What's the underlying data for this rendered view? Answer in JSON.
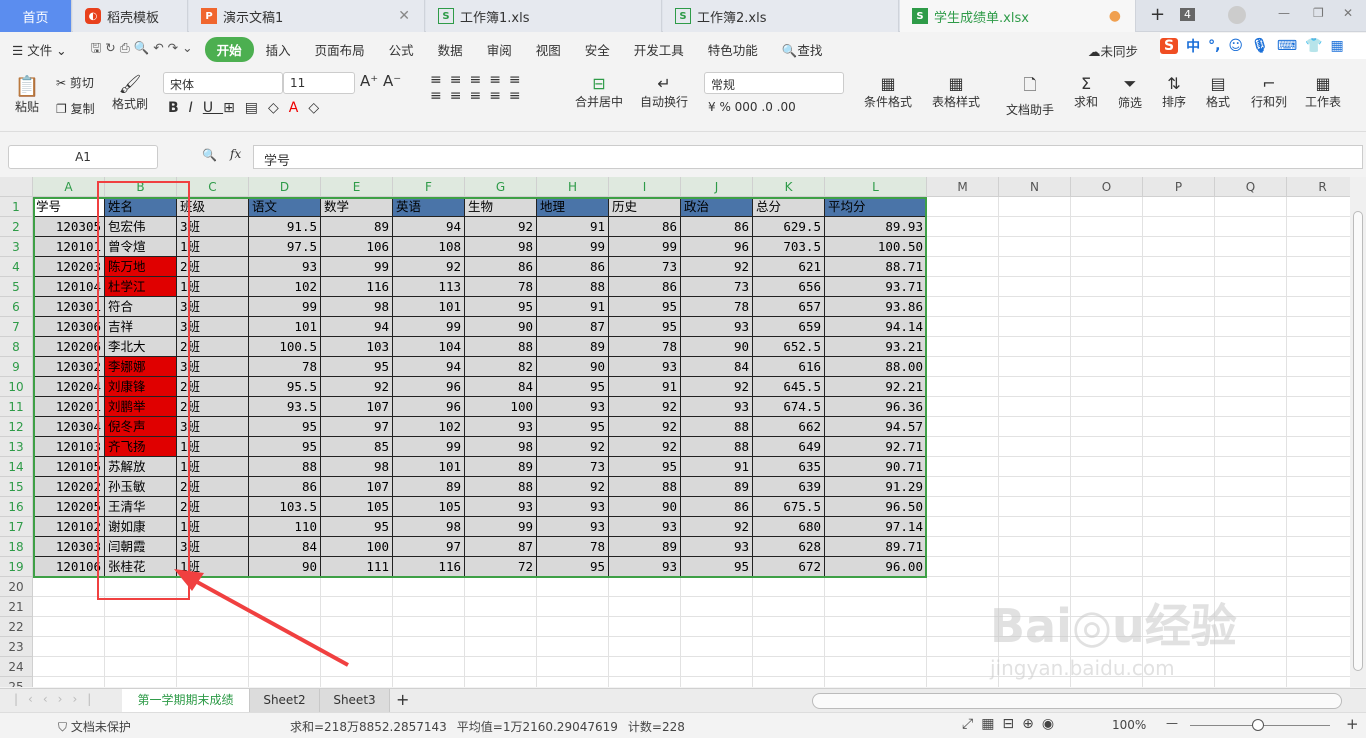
{
  "tabs": [
    {
      "label": "首页"
    },
    {
      "label": "稻壳模板"
    },
    {
      "label": "演示文稿1"
    },
    {
      "label": "工作簿1.xls"
    },
    {
      "label": "工作簿2.xls"
    },
    {
      "label": "学生成绩单.xlsx"
    }
  ],
  "tab_count": "4",
  "menu": {
    "file": "文件",
    "items": [
      "开始",
      "插入",
      "页面布局",
      "公式",
      "数据",
      "审阅",
      "视图",
      "安全",
      "开发工具",
      "特色功能"
    ],
    "search": "查找",
    "sync": "未同步"
  },
  "ime": {
    "lang": "中",
    "punct": "°,"
  },
  "ribbon": {
    "paste": "粘贴",
    "cut": "剪切",
    "copy": "复制",
    "format_painter": "格式刷",
    "font": "宋体",
    "size": "11",
    "merge": "合并居中",
    "wrap": "自动换行",
    "number_format": "常规",
    "cond_format": "条件格式",
    "table_style": "表格样式",
    "doc_helper": "文档助手",
    "sum": "求和",
    "filter": "筛选",
    "sort": "排序",
    "format": "格式",
    "rowcol": "行和列",
    "sheet": "工作表"
  },
  "formula_bar": {
    "cell": "A1",
    "fx": "fx",
    "value": "学号"
  },
  "columns": [
    "A",
    "B",
    "C",
    "D",
    "E",
    "F",
    "G",
    "H",
    "I",
    "J",
    "K",
    "L",
    "M",
    "N",
    "O",
    "P",
    "Q",
    "R"
  ],
  "table": {
    "headers": [
      "学号",
      "姓名",
      "班级",
      "语文",
      "数学",
      "英语",
      "生物",
      "地理",
      "历史",
      "政治",
      "总分",
      "平均分"
    ],
    "rows": [
      [
        "120305",
        "包宏伟",
        "3班",
        "91.5",
        "89",
        "94",
        "92",
        "91",
        "86",
        "86",
        "629.5",
        "89.93"
      ],
      [
        "120101",
        "曾令煊",
        "1班",
        "97.5",
        "106",
        "108",
        "98",
        "99",
        "99",
        "96",
        "703.5",
        "100.50"
      ],
      [
        "120203",
        "陈万地",
        "2班",
        "93",
        "99",
        "92",
        "86",
        "86",
        "73",
        "92",
        "621",
        "88.71"
      ],
      [
        "120104",
        "杜学江",
        "1班",
        "102",
        "116",
        "113",
        "78",
        "88",
        "86",
        "73",
        "656",
        "93.71"
      ],
      [
        "120301",
        "符合",
        "3班",
        "99",
        "98",
        "101",
        "95",
        "91",
        "95",
        "78",
        "657",
        "93.86"
      ],
      [
        "120306",
        "吉祥",
        "3班",
        "101",
        "94",
        "99",
        "90",
        "87",
        "95",
        "93",
        "659",
        "94.14"
      ],
      [
        "120206",
        "李北大",
        "2班",
        "100.5",
        "103",
        "104",
        "88",
        "89",
        "78",
        "90",
        "652.5",
        "93.21"
      ],
      [
        "120302",
        "李娜娜",
        "3班",
        "78",
        "95",
        "94",
        "82",
        "90",
        "93",
        "84",
        "616",
        "88.00"
      ],
      [
        "120204",
        "刘康锋",
        "2班",
        "95.5",
        "92",
        "96",
        "84",
        "95",
        "91",
        "92",
        "645.5",
        "92.21"
      ],
      [
        "120201",
        "刘鹏举",
        "2班",
        "93.5",
        "107",
        "96",
        "100",
        "93",
        "92",
        "93",
        "674.5",
        "96.36"
      ],
      [
        "120304",
        "倪冬声",
        "3班",
        "95",
        "97",
        "102",
        "93",
        "95",
        "92",
        "88",
        "662",
        "94.57"
      ],
      [
        "120103",
        "齐飞扬",
        "1班",
        "95",
        "85",
        "99",
        "98",
        "92",
        "92",
        "88",
        "649",
        "92.71"
      ],
      [
        "120105",
        "苏解放",
        "1班",
        "88",
        "98",
        "101",
        "89",
        "73",
        "95",
        "91",
        "635",
        "90.71"
      ],
      [
        "120202",
        "孙玉敏",
        "2班",
        "86",
        "107",
        "89",
        "88",
        "92",
        "88",
        "89",
        "639",
        "91.29"
      ],
      [
        "120205",
        "王清华",
        "2班",
        "103.5",
        "105",
        "105",
        "93",
        "93",
        "90",
        "86",
        "675.5",
        "96.50"
      ],
      [
        "120102",
        "谢如康",
        "1班",
        "110",
        "95",
        "98",
        "99",
        "93",
        "93",
        "92",
        "680",
        "97.14"
      ],
      [
        "120303",
        "闫朝霞",
        "3班",
        "84",
        "100",
        "97",
        "87",
        "78",
        "89",
        "93",
        "628",
        "89.71"
      ],
      [
        "120106",
        "张桂花",
        "1班",
        "90",
        "111",
        "116",
        "72",
        "95",
        "93",
        "95",
        "672",
        "96.00"
      ]
    ],
    "red_name_rows": [
      2,
      3,
      7,
      8,
      9,
      10,
      11
    ],
    "colors": {
      "header_blue": "#4a74a8",
      "data_gray": "#d9d9d9",
      "highlight_red": "#e00000",
      "selection": "#3ea046"
    }
  },
  "sheet_tabs": [
    "第一学期期末成绩",
    "Sheet2",
    "Sheet3"
  ],
  "status": {
    "protect": "文档未保护",
    "sum": "求和=218万8852.2857143",
    "avg": "平均值=1万2160.29047619",
    "count": "计数=228",
    "zoom": "100%"
  },
  "watermark": "Baidu经验 jingyan.baidu.com"
}
